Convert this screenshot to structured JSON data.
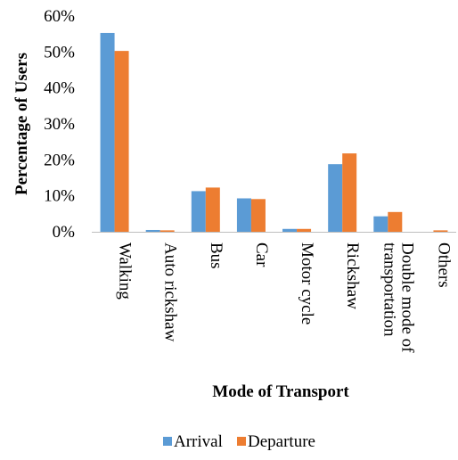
{
  "chart_data": {
    "type": "bar",
    "xlabel": "Mode of Transport",
    "ylabel": "Percentage of Users",
    "ylim": [
      0,
      60
    ],
    "yticks": [
      "0%",
      "10%",
      "20%",
      "30%",
      "40%",
      "50%",
      "60%"
    ],
    "categories": [
      [
        "Walking"
      ],
      [
        "Auto rickshaw"
      ],
      [
        "Bus"
      ],
      [
        "Car"
      ],
      [
        "Motor cycle"
      ],
      [
        "Rickshaw"
      ],
      [
        "Double mode of",
        "transportation"
      ],
      [
        "Others"
      ]
    ],
    "series": [
      {
        "name": "Arrival",
        "color": "#5b9bd5",
        "values": [
          55.3,
          0.5,
          11.3,
          9.3,
          0.8,
          18.8,
          4.3,
          0.0
        ]
      },
      {
        "name": "Departure",
        "color": "#ed7d31",
        "values": [
          50.3,
          0.4,
          12.3,
          9.1,
          0.8,
          21.8,
          5.5,
          0.4
        ]
      }
    ],
    "legend": "bottom",
    "grid": false
  }
}
